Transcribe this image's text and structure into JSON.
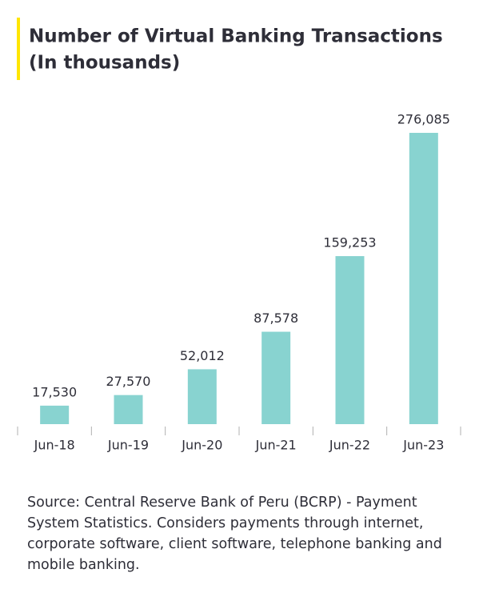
{
  "chart_data": {
    "type": "bar",
    "title": "Number of Virtual Banking Transactions",
    "subtitle": "(In thousands)",
    "categories": [
      "Jun-18",
      "Jun-19",
      "Jun-20",
      "Jun-21",
      "Jun-22",
      "Jun-23"
    ],
    "values": [
      17530,
      27570,
      52012,
      87578,
      159253,
      276085
    ],
    "value_labels": [
      "17,530",
      "27,570",
      "52,012",
      "87,578",
      "159,253",
      "276,085"
    ],
    "color": "#88d3d0",
    "note": "Source: Central Reserve Bank of Peru (BCRP) - Payment System Statistics. Considers payments through internet, corporate software, client software, telephone banking and mobile banking."
  }
}
